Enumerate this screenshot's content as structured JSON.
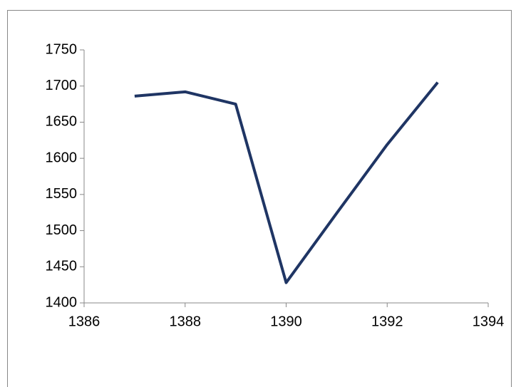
{
  "chart_data": {
    "type": "line",
    "x": [
      1387,
      1388,
      1389,
      1390,
      1391,
      1392,
      1393
    ],
    "series": [
      {
        "color": "#1f3564",
        "values": [
          1686,
          1692,
          1675,
          1428,
          1524,
          1619,
          1705
        ]
      }
    ],
    "xlim": [
      1386,
      1394
    ],
    "xticks": [
      1386,
      1388,
      1390,
      1392,
      1394
    ],
    "ylim": [
      1400,
      1750
    ],
    "yticks": [
      1400,
      1450,
      1500,
      1550,
      1600,
      1650,
      1700,
      1750
    ],
    "grid": false
  }
}
